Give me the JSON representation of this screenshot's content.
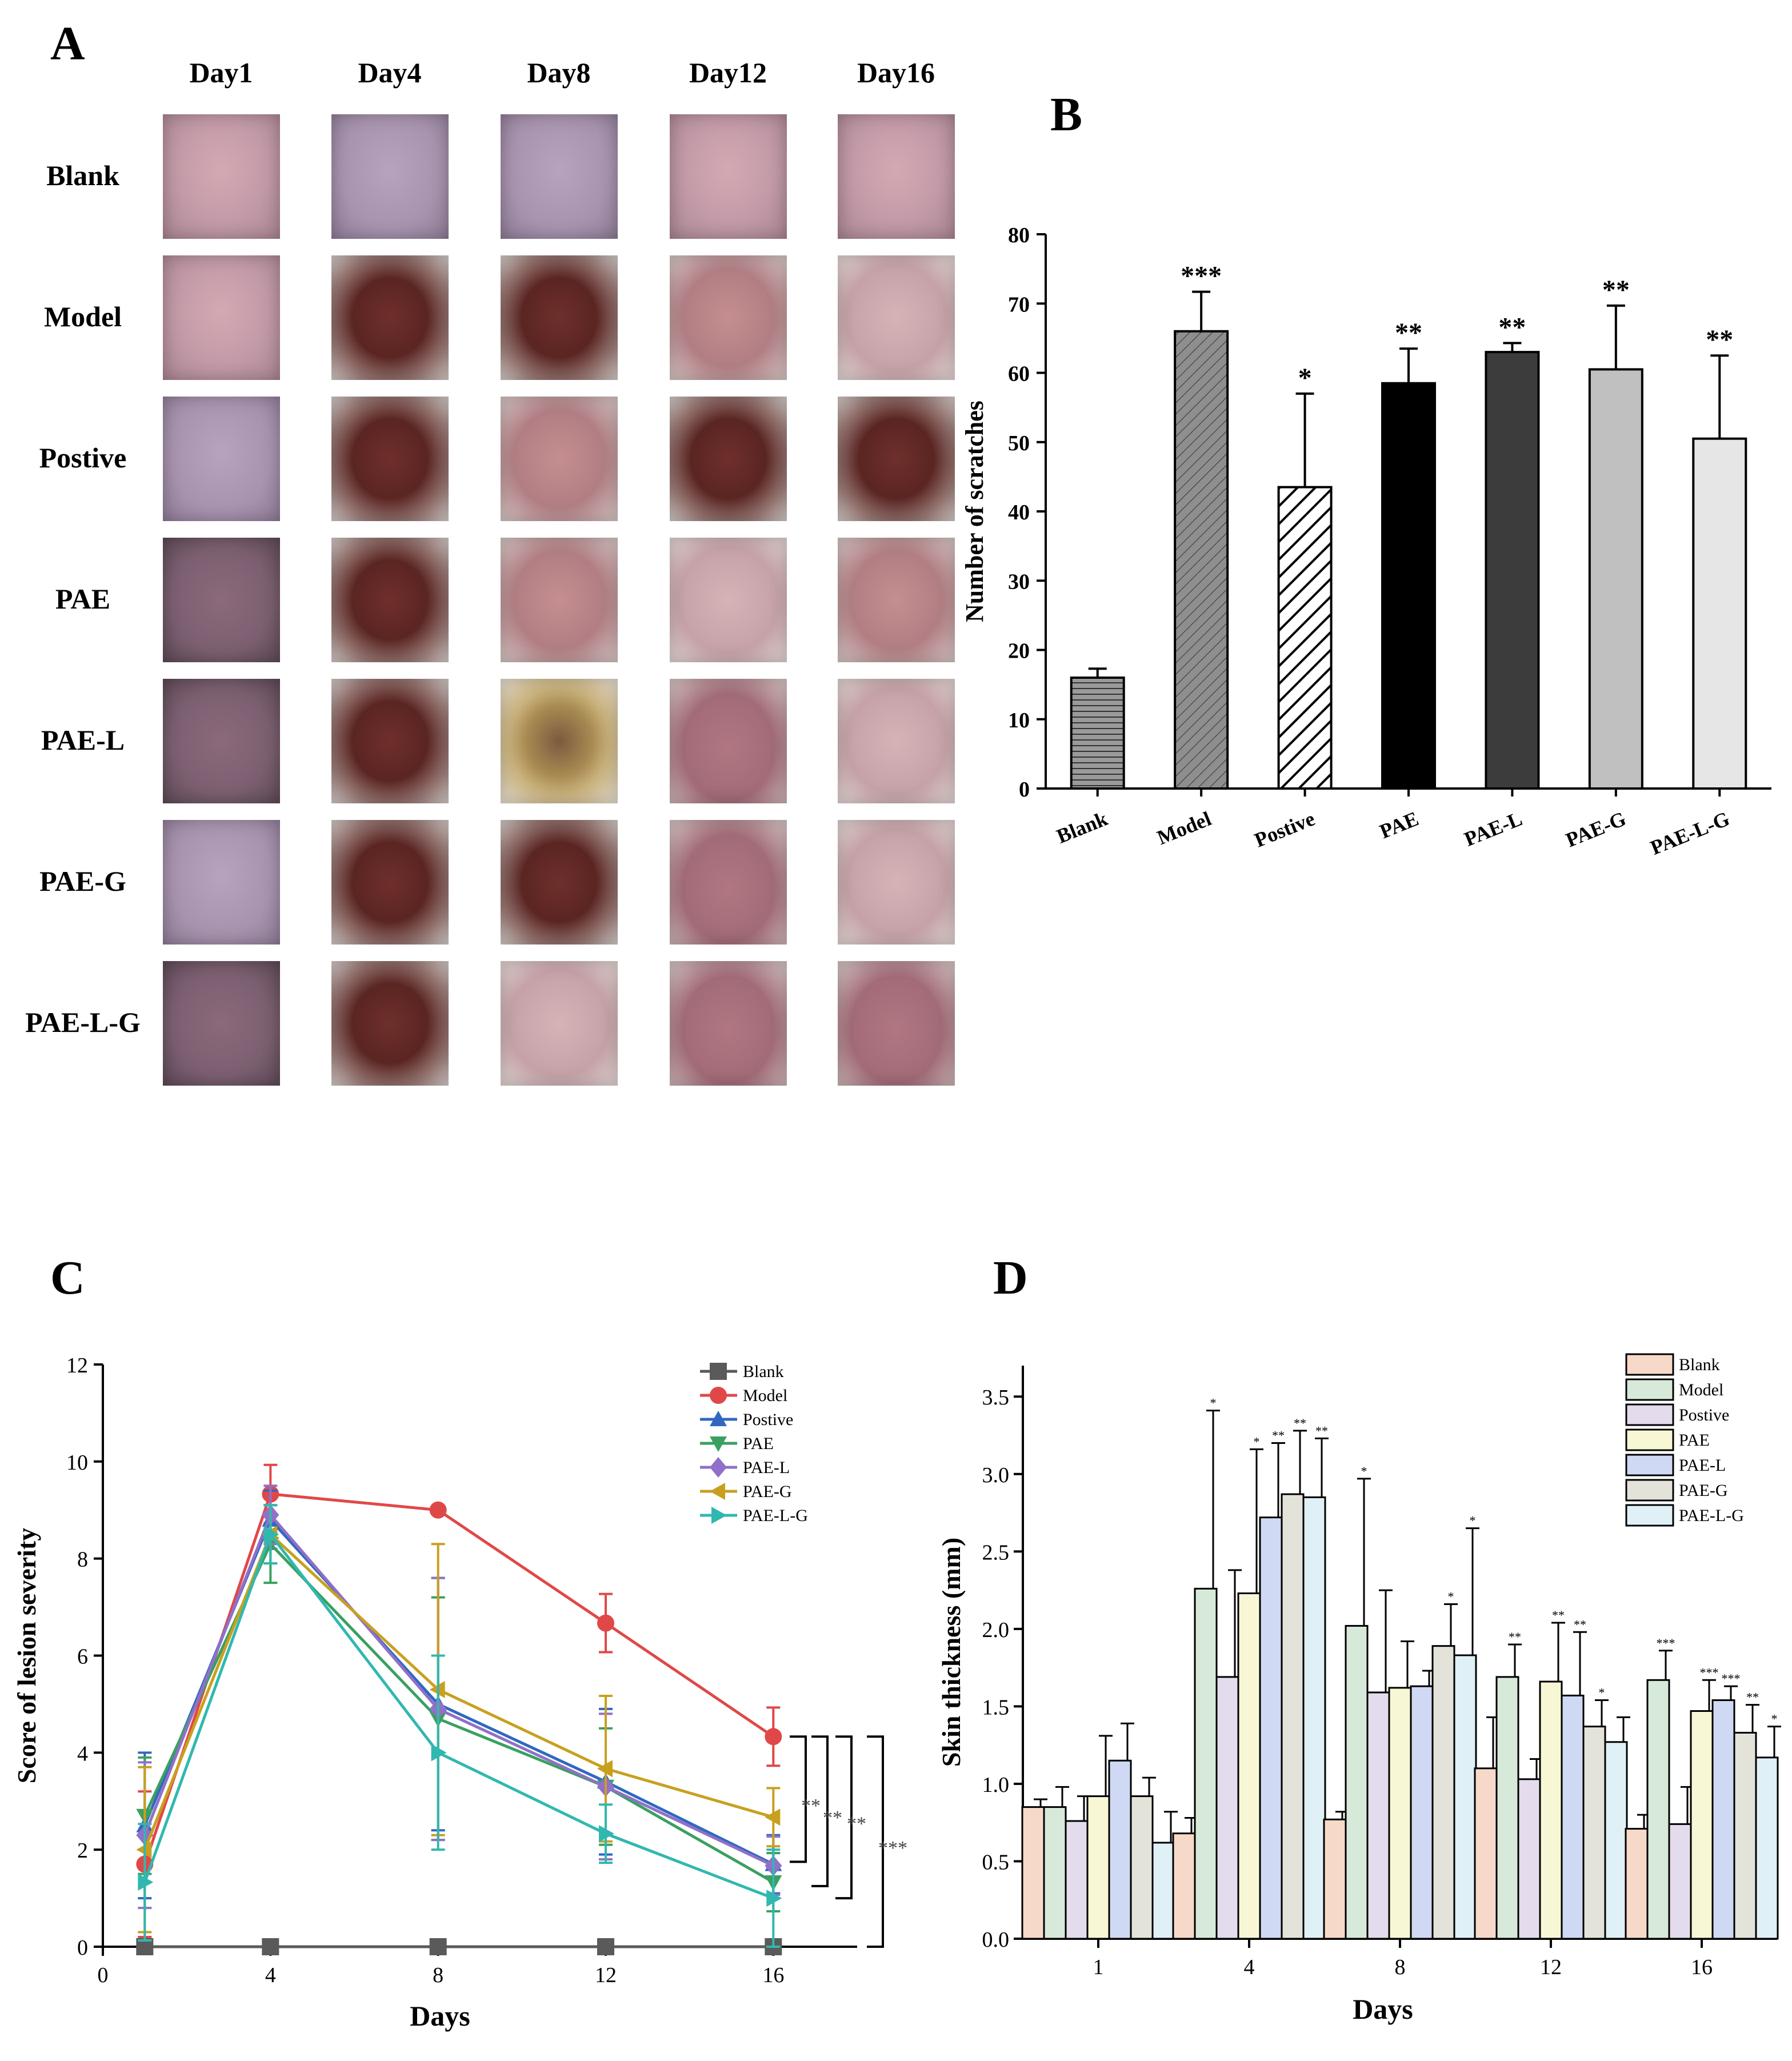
{
  "panel_a": {
    "letter": "A",
    "days": [
      "Day1",
      "Day4",
      "Day8",
      "Day12",
      "Day16"
    ],
    "groups": [
      "Blank",
      "Model",
      "Postive",
      "PAE",
      "PAE-L",
      "PAE-G",
      "PAE-L-G"
    ]
  },
  "colors": {
    "skin_blank": "#c29aa7",
    "lesion_dark": "#5a2522"
  },
  "chart_data": [
    {
      "id": "B",
      "letter": "B",
      "type": "bar",
      "categories": [
        "Blank",
        "Model",
        "Postive",
        "PAE",
        "PAE-L",
        "PAE-G",
        "PAE-L-G"
      ],
      "values": [
        16,
        66,
        43.5,
        58.5,
        63,
        60.5,
        50.5
      ],
      "errors": [
        1.3,
        5.7,
        13.5,
        5,
        1.3,
        9.2,
        12
      ],
      "significance": [
        "",
        "***",
        "*",
        "**",
        "**",
        "**",
        "**"
      ],
      "fills": [
        "#9a9a9a",
        "#8e8e8e",
        "#ffffff",
        "#000000",
        "#3c3c3c",
        "#c0c0c0",
        "#e6e6e6"
      ],
      "patterns": [
        "hlines",
        "diag",
        "diag-bold",
        "none",
        "none",
        "none",
        "none"
      ],
      "ylabel": "Number of scratches",
      "xlabel": "",
      "ylim": [
        0,
        80
      ],
      "yticks": [
        0,
        10,
        20,
        30,
        40,
        50,
        60,
        70,
        80
      ]
    },
    {
      "id": "C",
      "letter": "C",
      "type": "line",
      "x": [
        1,
        4,
        8,
        12,
        16
      ],
      "xticks": [
        0,
        4,
        8,
        12,
        16
      ],
      "yticks": [
        0,
        2,
        4,
        6,
        8,
        10,
        12
      ],
      "xlim": [
        0,
        18
      ],
      "ylim": [
        0,
        12
      ],
      "xlabel": "Days",
      "ylabel": "Score of lesion severity",
      "legend_position": "top-right",
      "series": [
        {
          "name": "Blank",
          "color": "#5a5a5a",
          "marker": "square",
          "values": [
            0,
            0,
            0,
            0,
            0
          ],
          "errors": [
            0,
            0,
            0,
            0,
            0
          ]
        },
        {
          "name": "Model",
          "color": "#e04848",
          "marker": "circle",
          "values": [
            1.7,
            9.33,
            9.0,
            6.67,
            4.33
          ],
          "errors": [
            1.5,
            0.6,
            0,
            0.6,
            0.6
          ]
        },
        {
          "name": "Postive",
          "color": "#3068c0",
          "marker": "triangle-up",
          "values": [
            2.5,
            8.8,
            5.0,
            3.4,
            1.7
          ],
          "errors": [
            1.5,
            0.6,
            2.6,
            1.5,
            0.6
          ]
        },
        {
          "name": "PAE",
          "color": "#3aa060",
          "marker": "triangle-down",
          "values": [
            2.7,
            8.3,
            4.7,
            3.3,
            1.33
          ],
          "errors": [
            1.2,
            0.8,
            2.5,
            1.2,
            0.6
          ]
        },
        {
          "name": "PAE-L",
          "color": "#9070c8",
          "marker": "diamond",
          "values": [
            2.3,
            8.9,
            4.9,
            3.3,
            1.67
          ],
          "errors": [
            1.5,
            0.6,
            2.7,
            1.5,
            0.6
          ]
        },
        {
          "name": "PAE-G",
          "color": "#c8a020",
          "marker": "triangle-left",
          "values": [
            2.0,
            8.5,
            5.3,
            3.67,
            2.67
          ],
          "errors": [
            1.7,
            0.6,
            3.0,
            1.5,
            0.6
          ]
        },
        {
          "name": "PAE-L-G",
          "color": "#30b8b0",
          "marker": "triangle-right",
          "values": [
            1.33,
            8.5,
            4.0,
            2.33,
            1.0
          ],
          "errors": [
            1.2,
            0.6,
            2.0,
            0.6,
            1.0
          ]
        }
      ],
      "brackets": [
        "**",
        "**",
        "**",
        "***"
      ]
    },
    {
      "id": "D",
      "letter": "D",
      "type": "bar",
      "categories": [
        "1",
        "4",
        "8",
        "12",
        "16"
      ],
      "xlabel": "Days",
      "ylabel": "Skin thickness (mm)",
      "ylim": [
        0,
        3.7
      ],
      "yticks": [
        0.0,
        0.5,
        1.0,
        1.5,
        2.0,
        2.5,
        3.0,
        3.5
      ],
      "legend_position": "top-right",
      "series": [
        {
          "name": "Blank",
          "color": "#f7d9c9",
          "values": [
            0.85,
            0.68,
            0.77,
            1.1,
            0.71
          ],
          "errors": [
            0.05,
            0.1,
            0.05,
            0.33,
            0.09
          ],
          "sig": [
            "",
            "",
            "",
            "",
            ""
          ]
        },
        {
          "name": "Model",
          "color": "#d7ead9",
          "values": [
            0.85,
            2.26,
            2.02,
            1.69,
            1.67
          ],
          "errors": [
            0.13,
            1.15,
            0.95,
            0.21,
            0.19
          ],
          "sig": [
            "",
            "*",
            "*",
            "**",
            "***"
          ]
        },
        {
          "name": "Postive",
          "color": "#e4dcec",
          "values": [
            0.76,
            1.69,
            1.59,
            1.03,
            0.74
          ],
          "errors": [
            0.16,
            0.69,
            0.66,
            0.13,
            0.24
          ],
          "sig": [
            "",
            "",
            "",
            "",
            ""
          ]
        },
        {
          "name": "PAE",
          "color": "#f8f7d5",
          "values": [
            0.92,
            2.23,
            1.62,
            1.66,
            1.47
          ],
          "errors": [
            0.39,
            0.93,
            0.3,
            0.38,
            0.2
          ],
          "sig": [
            "",
            "*",
            "",
            "**",
            "***"
          ]
        },
        {
          "name": "PAE-L",
          "color": "#cfd9f4",
          "values": [
            1.15,
            2.72,
            1.63,
            1.57,
            1.54
          ],
          "errors": [
            0.24,
            0.48,
            0.1,
            0.41,
            0.09
          ],
          "sig": [
            "",
            "**",
            "",
            "**",
            "***"
          ]
        },
        {
          "name": "PAE-G",
          "color": "#e4e3da",
          "values": [
            0.92,
            2.87,
            1.89,
            1.37,
            1.33
          ],
          "errors": [
            0.12,
            0.41,
            0.27,
            0.17,
            0.18
          ],
          "sig": [
            "",
            "**",
            "*",
            "*",
            "**"
          ]
        },
        {
          "name": "PAE-L-G",
          "color": "#dff1f6",
          "values": [
            0.62,
            2.85,
            1.83,
            1.27,
            1.17
          ],
          "errors": [
            0.2,
            0.38,
            0.82,
            0.16,
            0.2
          ],
          "sig": [
            "",
            "**",
            "*",
            "",
            "*"
          ]
        }
      ]
    }
  ]
}
